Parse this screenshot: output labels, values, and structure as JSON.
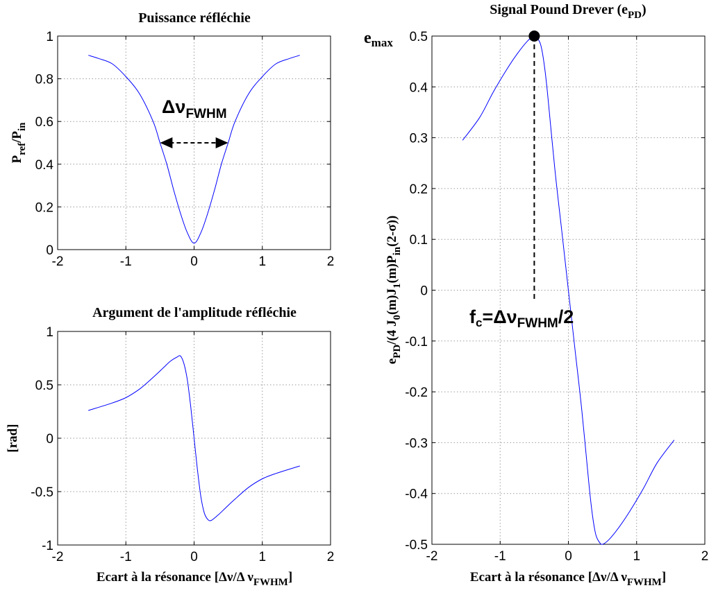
{
  "colors": {
    "curve": "#0000ff",
    "axis": "#000000",
    "grid": "#9a9a9a"
  },
  "chart_data": [
    {
      "id": "power",
      "type": "line",
      "title": "Puissance réfléchie",
      "ylabel": {
        "main": "P",
        "sub1": "ref",
        "mid": "/P",
        "sub2": "in"
      },
      "xlabel": null,
      "xlim": [
        -2,
        2
      ],
      "ylim": [
        0,
        1
      ],
      "xticks": [
        "-2",
        "-1",
        "0",
        "1",
        "2"
      ],
      "yticks": [
        "0",
        "0.2",
        "0.4",
        "0.6",
        "0.8",
        "1"
      ],
      "grid": true,
      "series": [
        {
          "x": [
            -1.55,
            -1.4,
            -1.2,
            -1.0,
            -0.8,
            -0.6,
            -0.5,
            -0.4,
            -0.3,
            -0.2,
            -0.1,
            0,
            0.1,
            0.2,
            0.3,
            0.4,
            0.5,
            0.6,
            0.8,
            1.0,
            1.2,
            1.4,
            1.55
          ],
          "y": [
            0.91,
            0.895,
            0.87,
            0.81,
            0.73,
            0.6,
            0.5,
            0.4,
            0.28,
            0.17,
            0.08,
            0.03,
            0.08,
            0.17,
            0.28,
            0.4,
            0.5,
            0.6,
            0.73,
            0.81,
            0.87,
            0.895,
            0.91
          ]
        }
      ],
      "annotations": {
        "fwhm_label_main": "Δν",
        "fwhm_label_sub": "FWHM",
        "fwhm_arrow": {
          "x1": -0.5,
          "x2": 0.5,
          "y": 0.5
        }
      }
    },
    {
      "id": "phase",
      "type": "line",
      "title": "Argument de l'amplitude réfléchie",
      "ylabel": "[rad]",
      "xlabel": {
        "main": "Ecart à la résonance [Δν/Δ ν",
        "sub": "FWHM",
        "end": "]"
      },
      "xlim": [
        -2,
        2
      ],
      "ylim": [
        -1,
        1
      ],
      "xticks": [
        "-2",
        "-1",
        "0",
        "1",
        "2"
      ],
      "yticks": [
        "-1",
        "-0.5",
        "0",
        "0.5",
        "1"
      ],
      "grid": true,
      "series": [
        {
          "x": [
            -1.55,
            -1.2,
            -1.0,
            -0.8,
            -0.6,
            -0.45,
            -0.35,
            -0.25,
            -0.2,
            -0.15,
            -0.1,
            -0.05,
            0,
            0.05,
            0.1,
            0.15,
            0.2,
            0.25,
            0.35,
            0.45,
            0.6,
            0.8,
            1.0,
            1.2,
            1.55
          ],
          "y": [
            0.26,
            0.33,
            0.38,
            0.46,
            0.57,
            0.66,
            0.72,
            0.76,
            0.77,
            0.7,
            0.55,
            0.3,
            0.0,
            -0.3,
            -0.55,
            -0.7,
            -0.76,
            -0.77,
            -0.72,
            -0.66,
            -0.57,
            -0.46,
            -0.38,
            -0.33,
            -0.26
          ]
        }
      ]
    },
    {
      "id": "pdh",
      "type": "line",
      "title": {
        "main": "Signal Pound Drever (e",
        "sub": "PD",
        "end": ")"
      },
      "ylabel": {
        "p1": "e",
        "s1": "PD",
        "p2": "/(4 J",
        "s2": "0",
        "p3": "(m)J",
        "s3": "1",
        "p4": "(m)P",
        "s4": "in",
        "p5": "(2-σ))"
      },
      "xlabel": {
        "main": "Ecart à la résonance [Δν/Δ ν",
        "sub": "FWHM",
        "end": "]"
      },
      "xlim": [
        -2,
        2
      ],
      "ylim": [
        -0.5,
        0.5
      ],
      "xticks": [
        "-2",
        "-1",
        "0",
        "1",
        "2"
      ],
      "yticks": [
        "-0.5",
        "-0.4",
        "-0.3",
        "-0.2",
        "-0.1",
        "0",
        "0.1",
        "0.2",
        "0.3",
        "0.4",
        "0.5"
      ],
      "grid": true,
      "series": [
        {
          "x": [
            -1.55,
            -1.3,
            -1.1,
            -0.9,
            -0.75,
            -0.6,
            -0.5,
            -0.45,
            -0.4,
            -0.35,
            -0.3,
            -0.2,
            -0.1,
            0,
            0.1,
            0.2,
            0.3,
            0.35,
            0.4,
            0.45,
            0.5,
            0.6,
            0.75,
            0.9,
            1.1,
            1.3,
            1.55
          ],
          "y": [
            0.295,
            0.34,
            0.39,
            0.435,
            0.465,
            0.49,
            0.5,
            0.495,
            0.48,
            0.44,
            0.38,
            0.24,
            0.12,
            0.0,
            -0.12,
            -0.24,
            -0.38,
            -0.44,
            -0.48,
            -0.495,
            -0.5,
            -0.49,
            -0.465,
            -0.435,
            -0.39,
            -0.34,
            -0.295
          ]
        }
      ],
      "annotations": {
        "emax_main": "e",
        "emax_sub": "max",
        "peak": {
          "x": -0.5,
          "y": 0.5
        },
        "dash_bottom_y": -0.02,
        "fc_main": "f",
        "fc_sub": "c",
        "fc_mid": "=Δν",
        "fc_sub2": "FWHM",
        "fc_end": "/2"
      }
    }
  ]
}
